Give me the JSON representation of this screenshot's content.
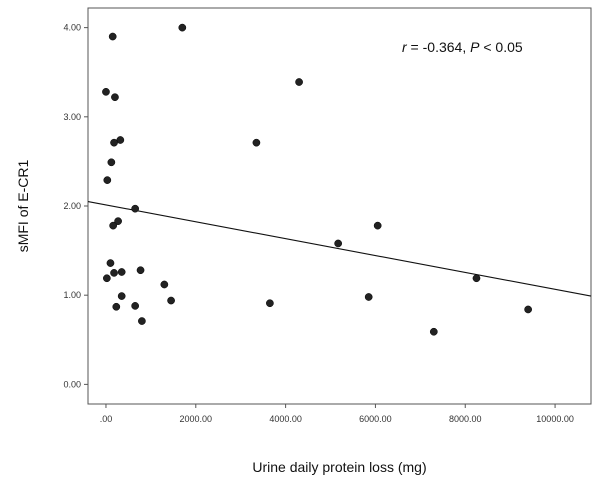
{
  "chart_data": {
    "type": "scatter",
    "title": "",
    "xlabel": "Urine daily protein loss (mg)",
    "ylabel": "sMFI of E-CR1",
    "xlim": [
      -400,
      10800
    ],
    "ylim": [
      -0.22,
      4.22
    ],
    "x_ticks": [
      0,
      2000,
      4000,
      6000,
      8000,
      10000
    ],
    "x_tick_labels": [
      ".00",
      "2000.00",
      "4000.00",
      "6000.00",
      "8000.00",
      "10000.00"
    ],
    "y_ticks": [
      0,
      1,
      2,
      3,
      4
    ],
    "y_tick_labels": [
      "0.00",
      "1.00",
      "2.00",
      "3.00",
      "4.00"
    ],
    "grid": false,
    "annotation": {
      "r_symbol": "r",
      "r_text": " = -0.364, ",
      "p_symbol": "P",
      "p_text": " < 0.05"
    },
    "series": [
      {
        "points": [
          {
            "x": 150,
            "y": 3.9
          },
          {
            "x": 1700,
            "y": 4.0
          },
          {
            "x": 4300,
            "y": 3.39
          },
          {
            "x": 0,
            "y": 3.28
          },
          {
            "x": 200,
            "y": 3.22
          },
          {
            "x": 320,
            "y": 2.74
          },
          {
            "x": 180,
            "y": 2.71
          },
          {
            "x": 3350,
            "y": 2.71
          },
          {
            "x": 120,
            "y": 2.49
          },
          {
            "x": 30,
            "y": 2.29
          },
          {
            "x": 650,
            "y": 1.97
          },
          {
            "x": 270,
            "y": 1.83
          },
          {
            "x": 160,
            "y": 1.78
          },
          {
            "x": 6050,
            "y": 1.78
          },
          {
            "x": 5170,
            "y": 1.58
          },
          {
            "x": 100,
            "y": 1.36
          },
          {
            "x": 770,
            "y": 1.28
          },
          {
            "x": 180,
            "y": 1.25
          },
          {
            "x": 350,
            "y": 1.26
          },
          {
            "x": 1300,
            "y": 1.12
          },
          {
            "x": 20,
            "y": 1.19
          },
          {
            "x": 8250,
            "y": 1.19
          },
          {
            "x": 350,
            "y": 0.99
          },
          {
            "x": 1450,
            "y": 0.94
          },
          {
            "x": 5850,
            "y": 0.98
          },
          {
            "x": 650,
            "y": 0.88
          },
          {
            "x": 230,
            "y": 0.87
          },
          {
            "x": 3650,
            "y": 0.91
          },
          {
            "x": 800,
            "y": 0.71
          },
          {
            "x": 9400,
            "y": 0.84
          },
          {
            "x": 7300,
            "y": 0.59
          }
        ]
      }
    ],
    "regression_line": {
      "x0": -400,
      "y0": 2.05,
      "x1": 10800,
      "y1": 0.99
    },
    "colors": {
      "point": "#222222",
      "line": "#111111",
      "axis": "#555555"
    }
  }
}
